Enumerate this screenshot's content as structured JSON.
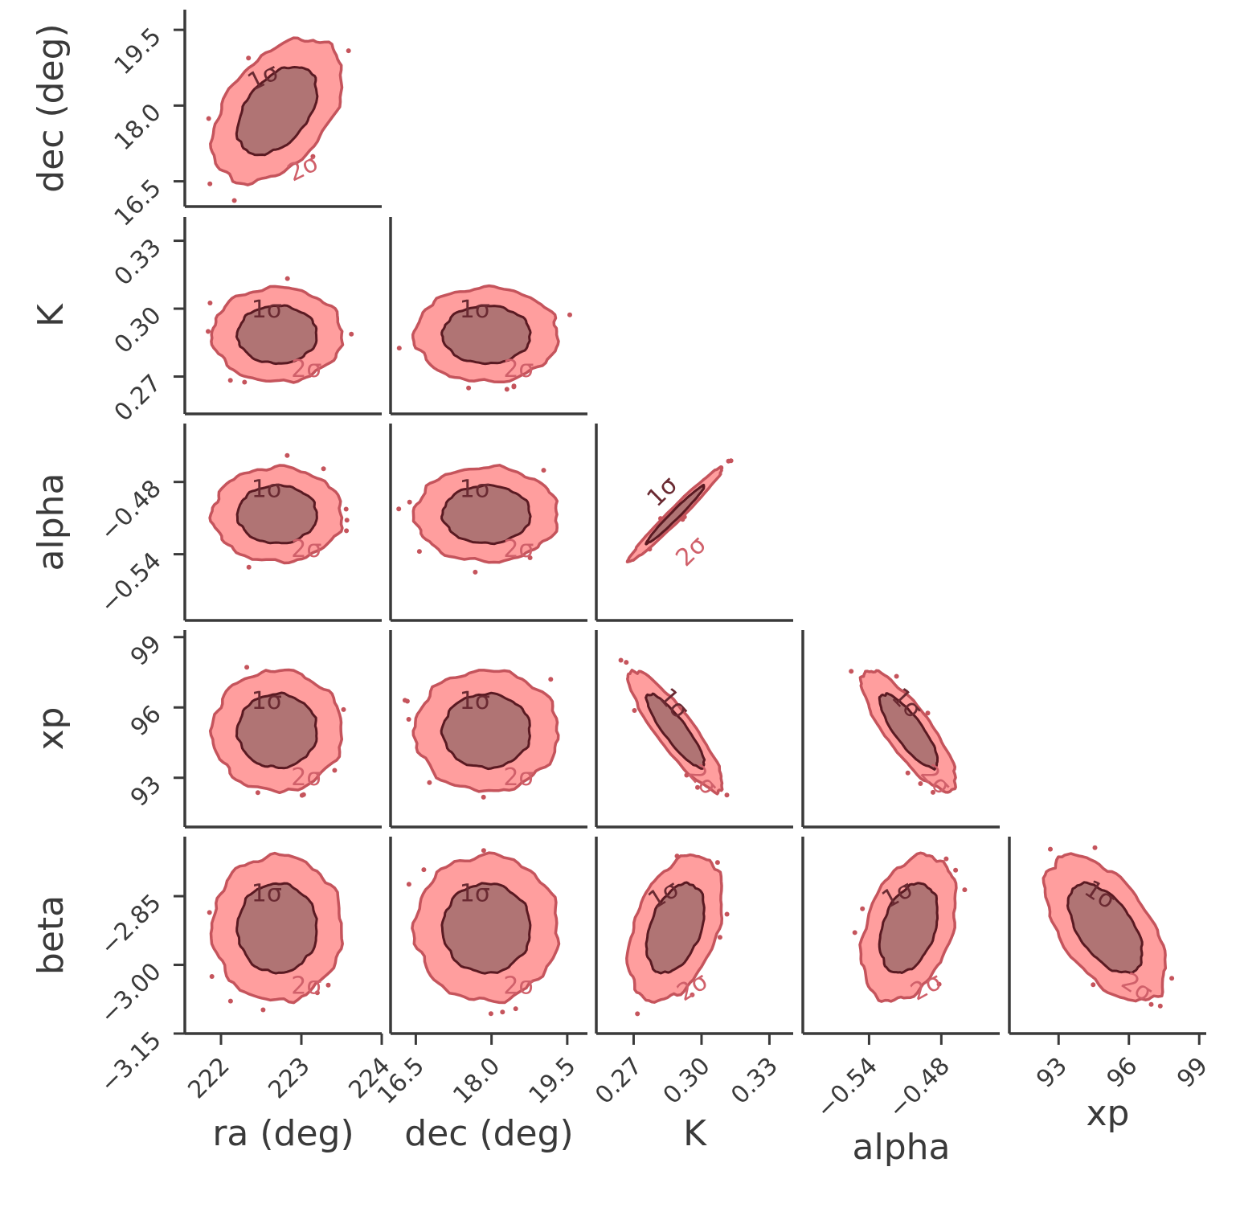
{
  "chart_data": {
    "type": "scatter",
    "subtype": "corner-contour",
    "title": "",
    "parameters": [
      {
        "key": "ra",
        "label": "ra (deg)",
        "ticks": [
          222,
          223,
          224
        ],
        "tick_labels": [
          "222",
          "223",
          "224"
        ],
        "range": [
          221.55,
          224.0
        ],
        "mean": 222.7,
        "sd": 0.33
      },
      {
        "key": "dec",
        "label": "dec (deg)",
        "ticks": [
          16.5,
          18.0,
          19.5
        ],
        "tick_labels": [
          "16.5",
          "18.0",
          "19.5"
        ],
        "range": [
          16.0,
          19.9
        ],
        "mean": 17.9,
        "sd": 0.58
      },
      {
        "key": "K",
        "label": "K",
        "ticks": [
          0.27,
          0.3,
          0.33
        ],
        "tick_labels": [
          "0.27",
          "0.30",
          "0.33"
        ],
        "range": [
          0.2535,
          0.3405
        ],
        "mean": 0.2885,
        "sd": 0.0085
      },
      {
        "key": "alpha",
        "label": "alpha",
        "ticks": [
          -0.54,
          -0.48
        ],
        "tick_labels": [
          "−0.54",
          "−0.48"
        ],
        "range": [
          -0.595,
          -0.4315
        ],
        "mean": -0.507,
        "sd": 0.016
      },
      {
        "key": "xp",
        "label": "xp",
        "ticks": [
          93,
          96,
          99
        ],
        "tick_labels": [
          "93",
          "96",
          "99"
        ],
        "range": [
          90.9,
          99.3
        ],
        "mean": 95.0,
        "sd": 1.05
      },
      {
        "key": "beta",
        "label": "beta",
        "ticks": [
          -2.85,
          -3.0,
          -3.15
        ],
        "tick_labels": [
          "−2.85",
          "−3.00",
          "−3.15"
        ],
        "range": [
          -3.15,
          -2.72
        ],
        "mean": -2.92,
        "sd": 0.065
      }
    ],
    "correlations": {
      "ra|dec": 0.45,
      "ra|K": 0.0,
      "dec|K": 0.0,
      "ra|alpha": 0.0,
      "dec|alpha": 0.0,
      "K|alpha": 0.98,
      "ra|xp": 0.0,
      "dec|xp": 0.0,
      "K|xp": -0.88,
      "alpha|xp": -0.82,
      "ra|beta": 0.0,
      "dec|beta": 0.0,
      "K|beta": 0.4,
      "alpha|beta": 0.35,
      "xp|beta": -0.55
    },
    "contour_levels": [
      "1σ",
      "2σ"
    ],
    "colors": {
      "outer_fill": "#ff9e9e",
      "outer_line": "#c5545c",
      "inner_fill": "#b07474",
      "inner_line": "#5a1a22",
      "axis": "#3a3a3a",
      "label_2sigma": "#d0606a",
      "label_1sigma": "#6a2a32"
    },
    "grid": false,
    "legend": "none"
  }
}
